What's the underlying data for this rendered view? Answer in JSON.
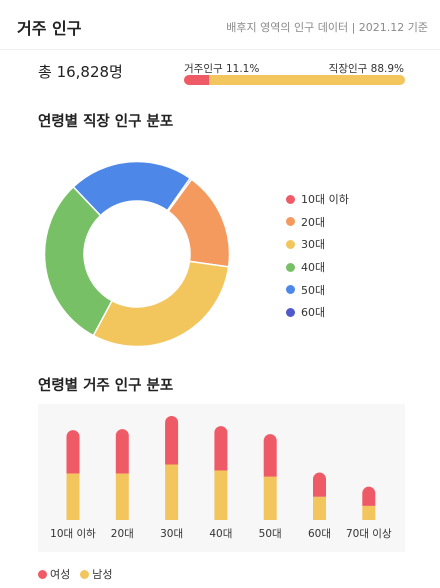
{
  "header": {
    "title": "거주 인구",
    "subtitle": "배후지 영역의 인구 데이터 | 2021.12 기준"
  },
  "summary": {
    "total_label": "총 16,828명",
    "resident_label": "거주인구 11.1%",
    "worker_label": "직장인구 88.9%",
    "resident_percent": 11.1,
    "worker_percent": 88.9
  },
  "sections": {
    "worker_title": "연령별 직장 인구 분포",
    "resident_title": "연령별 거주 인구 분포"
  },
  "colors": {
    "resident": "#ef5a67",
    "worker": "#f2c65c",
    "female": "#ef5a67",
    "male": "#f2c65c"
  },
  "chart_data": [
    {
      "type": "pie",
      "title": "연령별 직장 인구 분포",
      "categories": [
        "10대 이하",
        "20대",
        "30대",
        "40대",
        "50대",
        "60대"
      ],
      "values": [
        0,
        17.2,
        30.6,
        30.1,
        21.8,
        0.3
      ],
      "colors": [
        "#ef5a67",
        "#f49a5e",
        "#f2c65c",
        "#78c066",
        "#4d87e8",
        "#5059c9"
      ],
      "donut": true,
      "legend": "right"
    },
    {
      "type": "bar",
      "stacked": true,
      "title": "연령별 거주 인구 분포",
      "categories": [
        "10대 이하",
        "20대",
        "30대",
        "40대",
        "50대",
        "60대",
        "70대 이상"
      ],
      "series": [
        {
          "name": "남성",
          "color": "#f2c65c",
          "values": [
            46,
            46,
            55,
            49,
            43,
            23,
            14
          ]
        },
        {
          "name": "여성",
          "color": "#ef5a67",
          "values": [
            43,
            44,
            48,
            44,
            42,
            24,
            19
          ]
        }
      ],
      "ylim": [
        0,
        104
      ],
      "legend": "bottom-left"
    }
  ]
}
